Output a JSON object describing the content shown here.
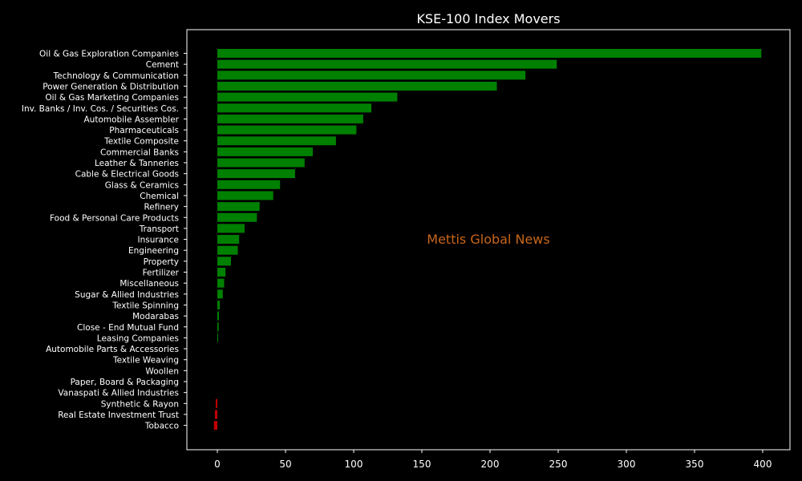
{
  "chart_data": {
    "type": "bar",
    "orientation": "horizontal",
    "title": "KSE-100 Index Movers",
    "xlabel": "",
    "ylabel": "",
    "xlim": [
      -22,
      400
    ],
    "xticks": [
      0,
      50,
      100,
      150,
      200,
      250,
      300,
      350,
      400
    ],
    "grid": false,
    "legend": "none",
    "colors": {
      "positive": "#008000",
      "negative": "#c00000",
      "background": "#000000",
      "text": "#ffffff"
    },
    "categories": [
      "Oil & Gas Exploration Companies",
      "Cement",
      "Technology & Communication",
      "Power Generation & Distribution",
      "Oil & Gas Marketing Companies",
      "Inv. Banks / Inv. Cos. / Securities Cos.",
      "Automobile Assembler",
      "Pharmaceuticals",
      "Textile Composite",
      "Commercial Banks",
      "Leather & Tanneries",
      "Cable & Electrical Goods",
      "Glass & Ceramics",
      "Chemical",
      "Refinery",
      "Food & Personal Care Products",
      "Transport",
      "Insurance",
      "Engineering",
      "Property",
      "Fertilizer",
      "Miscellaneous",
      "Sugar & Allied Industries",
      "Textile Spinning",
      "Modarabas",
      "Close - End Mutual Fund",
      "Leasing Companies",
      "Automobile Parts & Accessories",
      "Textile Weaving",
      "Woollen",
      "Paper, Board & Packaging",
      "Vanaspati & Allied Industries",
      "Synthetic & Rayon",
      "Real Estate Investment Trust",
      "Tobacco"
    ],
    "values": [
      399,
      249,
      226,
      205,
      132,
      113,
      107,
      102,
      87,
      70,
      64,
      57,
      46,
      41,
      31,
      29,
      20,
      16,
      15,
      10,
      6,
      5,
      4,
      1.8,
      1.2,
      1.0,
      0.5,
      0,
      0,
      0,
      0,
      0,
      -1.2,
      -1.8,
      -2.5
    ],
    "annotations": [
      "Mettis Global News"
    ]
  }
}
